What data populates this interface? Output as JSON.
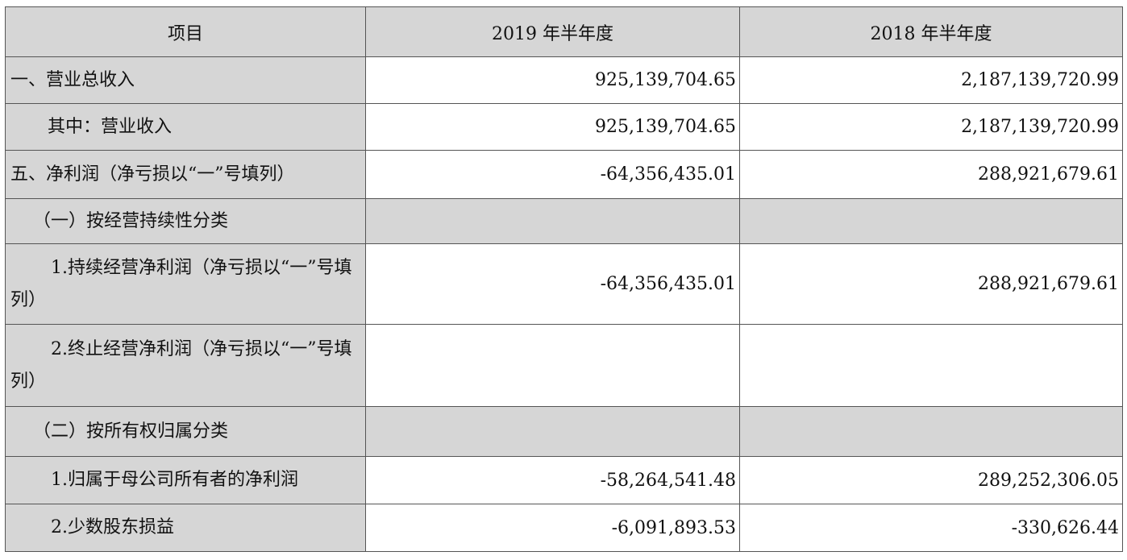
{
  "table": {
    "headers": {
      "item": "项目",
      "col_2019": "2019 年半年度",
      "col_2018": "2018 年半年度"
    },
    "rows": [
      {
        "label": "一、营业总收入",
        "v2019": "925,139,704.65",
        "v2018": "2,187,139,720.99"
      },
      {
        "label": "其中：营业收入",
        "v2019": "925,139,704.65",
        "v2018": "2,187,139,720.99"
      },
      {
        "label": "五、净利润（净亏损以“一”号填列）",
        "v2019": "-64,356,435.01",
        "v2018": "288,921,679.61"
      },
      {
        "label": "（一）按经营持续性分类",
        "v2019": "",
        "v2018": ""
      },
      {
        "label": "1.持续经营净利润（净亏损以“一”号填列）",
        "v2019": "-64,356,435.01",
        "v2018": "288,921,679.61"
      },
      {
        "label": "2.终止经营净利润（净亏损以“一”号填列）",
        "v2019": "",
        "v2018": ""
      },
      {
        "label": "（二）按所有权归属分类",
        "v2019": "",
        "v2018": ""
      },
      {
        "label": "1.归属于母公司所有者的净利润",
        "v2019": "-58,264,541.48",
        "v2018": "289,252,306.05"
      },
      {
        "label": "2.少数股东损益",
        "v2019": "-6,091,893.53",
        "v2018": "-330,626.44"
      }
    ]
  }
}
